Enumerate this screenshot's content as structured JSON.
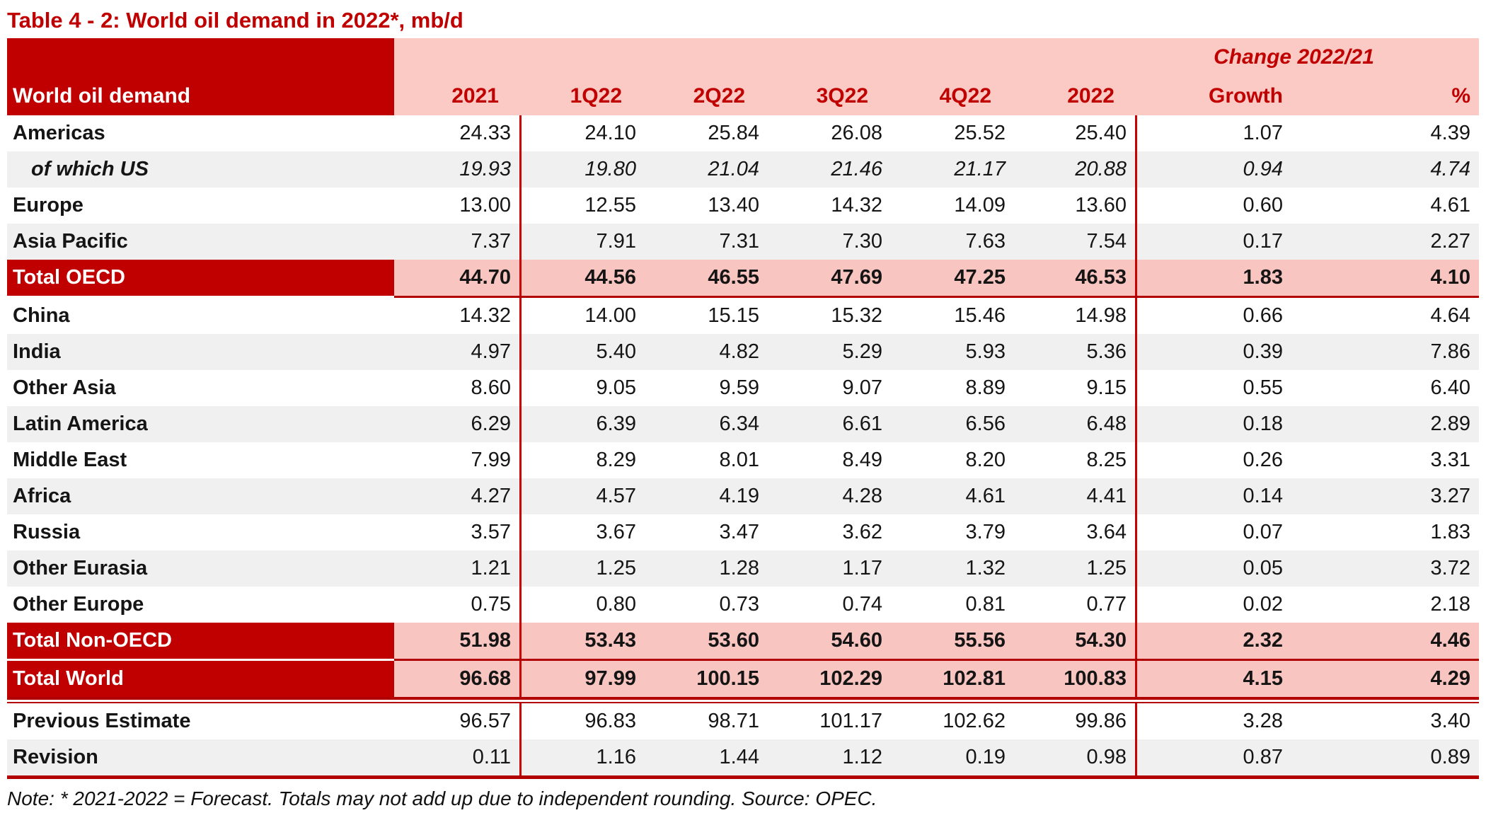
{
  "title": "Table 4 - 2: World oil demand in 2022*, mb/d",
  "table": {
    "label_header": "World oil demand",
    "change_header": "Change 2022/21",
    "columns": [
      "2021",
      "1Q22",
      "2Q22",
      "3Q22",
      "4Q22",
      "2022",
      "Growth",
      "%"
    ],
    "rows": [
      {
        "label": "Americas",
        "style": "plain",
        "shade": false,
        "values": [
          "24.33",
          "24.10",
          "25.84",
          "26.08",
          "25.52",
          "25.40",
          "1.07",
          "4.39"
        ]
      },
      {
        "label": "of which US",
        "style": "sub",
        "shade": true,
        "values": [
          "19.93",
          "19.80",
          "21.04",
          "21.46",
          "21.17",
          "20.88",
          "0.94",
          "4.74"
        ]
      },
      {
        "label": "Europe",
        "style": "plain",
        "shade": false,
        "values": [
          "13.00",
          "12.55",
          "13.40",
          "14.32",
          "14.09",
          "13.60",
          "0.60",
          "4.61"
        ]
      },
      {
        "label": "Asia Pacific",
        "style": "plain",
        "shade": true,
        "values": [
          "7.37",
          "7.91",
          "7.31",
          "7.30",
          "7.63",
          "7.54",
          "0.17",
          "2.27"
        ]
      },
      {
        "label": "Total OECD",
        "style": "total",
        "shade": false,
        "values": [
          "44.70",
          "44.56",
          "46.55",
          "47.69",
          "47.25",
          "46.53",
          "1.83",
          "4.10"
        ],
        "divider": "values-line"
      },
      {
        "label": "China",
        "style": "plain",
        "shade": false,
        "values": [
          "14.32",
          "14.00",
          "15.15",
          "15.32",
          "15.46",
          "14.98",
          "0.66",
          "4.64"
        ]
      },
      {
        "label": "India",
        "style": "plain",
        "shade": true,
        "values": [
          "4.97",
          "5.40",
          "4.82",
          "5.29",
          "5.93",
          "5.36",
          "0.39",
          "7.86"
        ]
      },
      {
        "label": "Other Asia",
        "style": "plain",
        "shade": false,
        "values": [
          "8.60",
          "9.05",
          "9.59",
          "9.07",
          "8.89",
          "9.15",
          "0.55",
          "6.40"
        ]
      },
      {
        "label": "Latin America",
        "style": "plain",
        "shade": true,
        "values": [
          "6.29",
          "6.39",
          "6.34",
          "6.61",
          "6.56",
          "6.48",
          "0.18",
          "2.89"
        ]
      },
      {
        "label": "Middle East",
        "style": "plain",
        "shade": false,
        "values": [
          "7.99",
          "8.29",
          "8.01",
          "8.49",
          "8.20",
          "8.25",
          "0.26",
          "3.31"
        ]
      },
      {
        "label": "Africa",
        "style": "plain",
        "shade": true,
        "values": [
          "4.27",
          "4.57",
          "4.19",
          "4.28",
          "4.61",
          "4.41",
          "0.14",
          "3.27"
        ]
      },
      {
        "label": "Russia",
        "style": "plain",
        "shade": false,
        "values": [
          "3.57",
          "3.67",
          "3.47",
          "3.62",
          "3.79",
          "3.64",
          "0.07",
          "1.83"
        ]
      },
      {
        "label": "Other Eurasia",
        "style": "plain",
        "shade": true,
        "values": [
          "1.21",
          "1.25",
          "1.28",
          "1.17",
          "1.32",
          "1.25",
          "0.05",
          "3.72"
        ]
      },
      {
        "label": "Other Europe",
        "style": "plain",
        "shade": false,
        "values": [
          "0.75",
          "0.80",
          "0.73",
          "0.74",
          "0.81",
          "0.77",
          "0.02",
          "2.18"
        ]
      },
      {
        "label": "Total Non-OECD",
        "style": "total",
        "shade": false,
        "values": [
          "51.98",
          "53.43",
          "53.60",
          "54.60",
          "55.56",
          "54.30",
          "2.32",
          "4.46"
        ],
        "divider": "values-line"
      },
      {
        "label": "Total World",
        "style": "total",
        "shade": false,
        "values": [
          "96.68",
          "97.99",
          "100.15",
          "102.29",
          "102.81",
          "100.83",
          "4.15",
          "4.29"
        ],
        "divider": "double"
      },
      {
        "label": "Previous Estimate",
        "style": "plain",
        "shade": false,
        "values": [
          "96.57",
          "96.83",
          "98.71",
          "101.17",
          "102.62",
          "99.86",
          "3.28",
          "3.40"
        ]
      },
      {
        "label": "Revision",
        "style": "plain",
        "shade": true,
        "values": [
          "0.11",
          "1.16",
          "1.44",
          "1.12",
          "0.19",
          "0.98",
          "0.87",
          "0.89"
        ],
        "divider": "bottom"
      }
    ]
  },
  "note": "Note: * 2021-2022 = Forecast. Totals may not add up due to independent rounding. Source: OPEC.",
  "colors": {
    "dark_red": "#C00000",
    "title_red": "#C00000",
    "header_pink": "#FBCAC5",
    "total_pink": "#F9C5C0",
    "alt_gray": "#F0F0F0",
    "line_red": "#CC0000",
    "divider_red": "#B20000",
    "text_black": "#151515"
  }
}
